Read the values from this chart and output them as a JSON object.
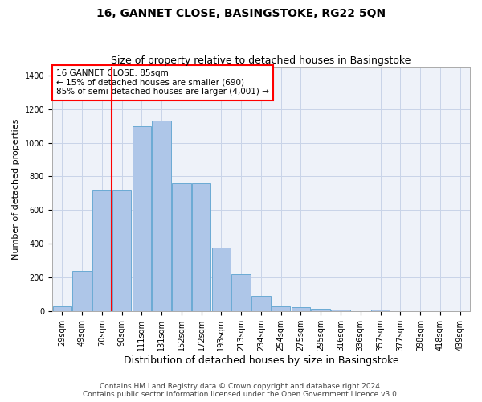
{
  "title": "16, GANNET CLOSE, BASINGSTOKE, RG22 5QN",
  "subtitle": "Size of property relative to detached houses in Basingstoke",
  "xlabel": "Distribution of detached houses by size in Basingstoke",
  "ylabel": "Number of detached properties",
  "footer_line1": "Contains HM Land Registry data © Crown copyright and database right 2024.",
  "footer_line2": "Contains public sector information licensed under the Open Government Licence v3.0.",
  "annotation_line1": "16 GANNET CLOSE: 85sqm",
  "annotation_line2": "← 15% of detached houses are smaller (690)",
  "annotation_line3": "85% of semi-detached houses are larger (4,001) →",
  "bar_labels": [
    "29sqm",
    "49sqm",
    "70sqm",
    "90sqm",
    "111sqm",
    "131sqm",
    "152sqm",
    "172sqm",
    "193sqm",
    "213sqm",
    "234sqm",
    "254sqm",
    "275sqm",
    "295sqm",
    "316sqm",
    "336sqm",
    "357sqm",
    "377sqm",
    "398sqm",
    "418sqm",
    "439sqm"
  ],
  "bar_values": [
    30,
    240,
    720,
    720,
    1100,
    1130,
    760,
    760,
    380,
    220,
    90,
    30,
    25,
    15,
    10,
    0,
    10,
    0,
    0,
    0,
    0
  ],
  "bar_color": "#aec6e8",
  "bar_edgecolor": "#6aaad4",
  "vline_x_idx": 2.5,
  "vline_color": "red",
  "ylim": [
    0,
    1450
  ],
  "yticks": [
    0,
    200,
    400,
    600,
    800,
    1000,
    1200,
    1400
  ],
  "background_color": "#eef2f9",
  "grid_color": "#c8d4e8",
  "title_fontsize": 10,
  "subtitle_fontsize": 9,
  "xlabel_fontsize": 9,
  "ylabel_fontsize": 8,
  "tick_fontsize": 7,
  "annotation_fontsize": 7.5,
  "footer_fontsize": 6.5
}
